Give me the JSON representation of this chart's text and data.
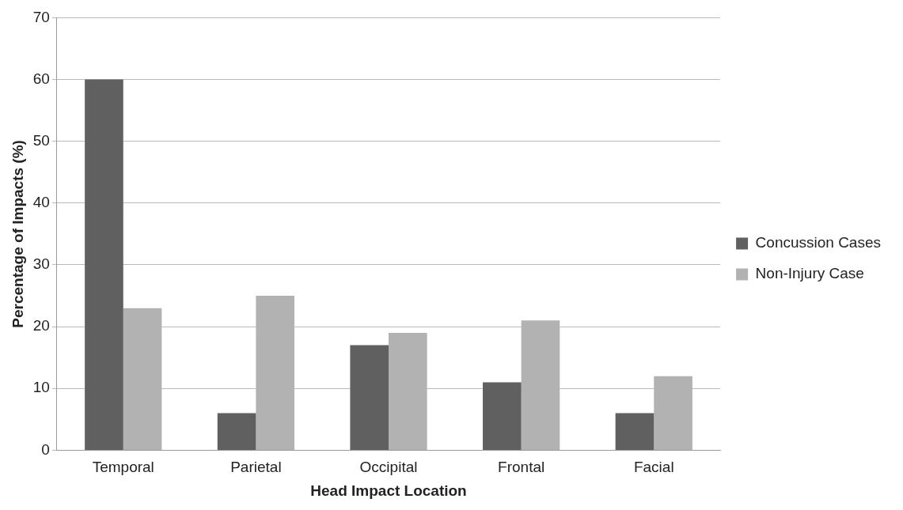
{
  "chart_data": {
    "type": "bar",
    "xlabel": "Head Impact Location",
    "ylabel": "Percentage of Impacts (%)",
    "categories": [
      "Temporal",
      "Parietal",
      "Occipital",
      "Frontal",
      "Facial"
    ],
    "series": [
      {
        "name": "Concussion Cases",
        "color": "#606060",
        "values": [
          60,
          6,
          17,
          11,
          6
        ]
      },
      {
        "name": "Non-Injury Case",
        "color": "#b2b2b2",
        "values": [
          23,
          25,
          19,
          21,
          12
        ]
      }
    ],
    "ylim": [
      0,
      70
    ],
    "yticks": [
      0,
      10,
      20,
      30,
      40,
      50,
      60,
      70
    ],
    "grid": "y",
    "legend": "right"
  }
}
